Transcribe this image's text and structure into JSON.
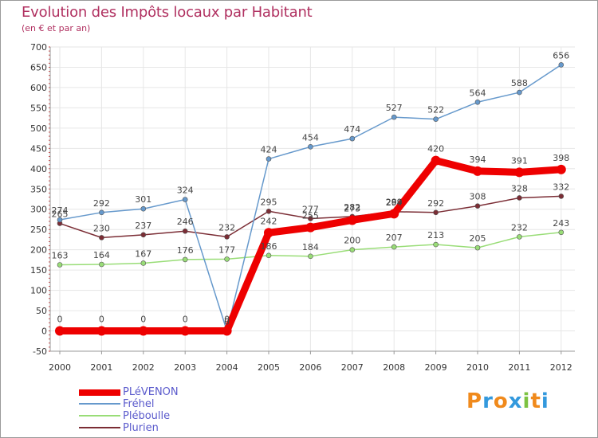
{
  "chart_data": {
    "type": "line",
    "title": "Evolution des Impôts locaux par Habitant",
    "subtitle": "(en € et par an)",
    "x": [
      "2000",
      "2001",
      "2002",
      "2003",
      "2004",
      "2005",
      "2006",
      "2007",
      "2008",
      "2009",
      "2010",
      "2011",
      "2012"
    ],
    "ylim": [
      -50,
      700
    ],
    "yticks": [
      -50,
      0,
      50,
      100,
      150,
      200,
      250,
      300,
      350,
      400,
      450,
      500,
      550,
      600,
      650,
      700
    ],
    "grid": true,
    "legend_position": "bottom-left",
    "series": [
      {
        "name": "Plurien",
        "color": "#7b2d35",
        "values": [
          265,
          230,
          237,
          246,
          232,
          295,
          277,
          282,
          294,
          292,
          308,
          328,
          332
        ],
        "labels": [
          "265",
          "230",
          "237",
          "246",
          "232",
          "295",
          "277",
          "282",
          "294",
          "292",
          "308",
          "328",
          "332"
        ]
      },
      {
        "name": "Pléboulle",
        "color": "#99dd77",
        "values": [
          163,
          164,
          167,
          176,
          177,
          186,
          184,
          200,
          207,
          213,
          205,
          232,
          243
        ],
        "labels": [
          "163",
          "164",
          "167",
          "176",
          "177",
          "186",
          "184",
          "200",
          "207",
          "213",
          "205",
          "232",
          "243"
        ]
      },
      {
        "name": "Fréhel",
        "color": "#6699cc",
        "values": [
          274,
          292,
          301,
          324,
          0,
          424,
          454,
          474,
          527,
          522,
          564,
          588,
          656
        ],
        "labels": [
          "274",
          "292",
          "301",
          "324",
          "0",
          "424",
          "454",
          "474",
          "527",
          "522",
          "564",
          "588",
          "656"
        ]
      },
      {
        "name": "PLéVENON",
        "color": "#ee0000",
        "values": [
          0,
          0,
          0,
          0,
          0,
          242,
          255,
          273,
          289,
          420,
          394,
          391,
          398
        ],
        "labels": [
          "0",
          "0",
          "0",
          "0",
          "0",
          "242",
          "255",
          "273",
          "289",
          "420",
          "394",
          "391",
          "398"
        ]
      }
    ]
  },
  "legend": {
    "items": [
      {
        "name": "PLéVENON",
        "color": "#ee0000"
      },
      {
        "name": "Fréhel",
        "color": "#6699cc"
      },
      {
        "name": "Pléboulle",
        "color": "#99dd77"
      },
      {
        "name": "Plurien",
        "color": "#7b2d35"
      }
    ]
  },
  "logo": {
    "text": "Proxiti",
    "letters": [
      {
        "ch": "P",
        "color": "#f08a1c"
      },
      {
        "ch": "r",
        "color": "#3399dd"
      },
      {
        "ch": "o",
        "color": "#f08a1c"
      },
      {
        "ch": "x",
        "color": "#3399dd"
      },
      {
        "ch": "i",
        "color": "#7cc242"
      },
      {
        "ch": "t",
        "color": "#f08a1c"
      },
      {
        "ch": "i",
        "color": "#3399dd"
      }
    ]
  }
}
